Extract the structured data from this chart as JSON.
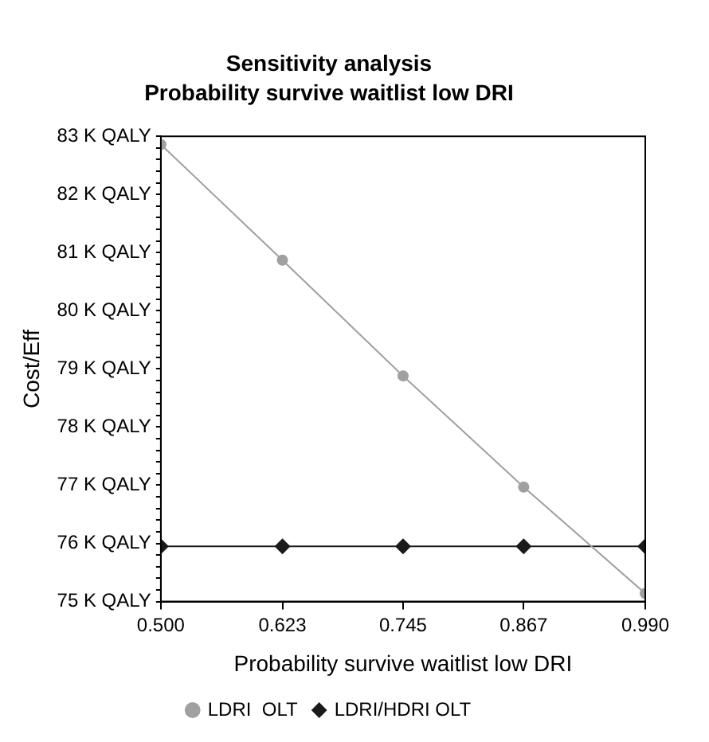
{
  "chart_data": {
    "type": "line",
    "title": "Sensitivity analysis",
    "subtitle": "Probability survive waitlist low DRI",
    "xlabel": "Probability survive waitlist low DRI",
    "ylabel": "Cost/Eff",
    "x": [
      0.5,
      0.623,
      0.745,
      0.867,
      0.99
    ],
    "series": [
      {
        "name": "LDRI  OLT",
        "color": "#a0a0a0",
        "marker": "circle",
        "values": [
          82.86,
          80.87,
          78.88,
          76.97,
          75.14
        ]
      },
      {
        "name": "LDRI/HDRI OLT",
        "color": "#1a1a1a",
        "marker": "diamond",
        "values": [
          75.95,
          75.95,
          75.95,
          75.95,
          75.95
        ]
      }
    ],
    "xlim": [
      0.5,
      0.99
    ],
    "xticks": [
      {
        "value": 0.5,
        "label": "0.500"
      },
      {
        "value": 0.623,
        "label": "0.623"
      },
      {
        "value": 0.745,
        "label": "0.745"
      },
      {
        "value": 0.867,
        "label": "0.867"
      },
      {
        "value": 0.99,
        "label": "0.990"
      }
    ],
    "ylim": [
      75,
      83
    ],
    "yticks": [
      {
        "value": 75,
        "label": "75 K QALY"
      },
      {
        "value": 75.2,
        "label": null
      },
      {
        "value": 75.4,
        "label": null
      },
      {
        "value": 75.6,
        "label": null
      },
      {
        "value": 75.8,
        "label": null
      },
      {
        "value": 76,
        "label": "76 K QALY"
      },
      {
        "value": 76.2,
        "label": null
      },
      {
        "value": 76.4,
        "label": null
      },
      {
        "value": 76.6,
        "label": null
      },
      {
        "value": 76.8,
        "label": null
      },
      {
        "value": 77,
        "label": "77 K QALY"
      },
      {
        "value": 77.2,
        "label": null
      },
      {
        "value": 77.4,
        "label": null
      },
      {
        "value": 77.6,
        "label": null
      },
      {
        "value": 77.8,
        "label": null
      },
      {
        "value": 78,
        "label": "78 K QALY"
      },
      {
        "value": 78.2,
        "label": null
      },
      {
        "value": 78.4,
        "label": null
      },
      {
        "value": 78.6,
        "label": null
      },
      {
        "value": 78.8,
        "label": null
      },
      {
        "value": 79,
        "label": "79 K QALY"
      },
      {
        "value": 79.2,
        "label": null
      },
      {
        "value": 79.4,
        "label": null
      },
      {
        "value": 79.6,
        "label": null
      },
      {
        "value": 79.8,
        "label": null
      },
      {
        "value": 80,
        "label": "80 K QALY"
      },
      {
        "value": 80.2,
        "label": null
      },
      {
        "value": 80.4,
        "label": null
      },
      {
        "value": 80.6,
        "label": null
      },
      {
        "value": 80.8,
        "label": null
      },
      {
        "value": 81,
        "label": "81 K QALY"
      },
      {
        "value": 81.2,
        "label": null
      },
      {
        "value": 81.4,
        "label": null
      },
      {
        "value": 81.6,
        "label": null
      },
      {
        "value": 81.8,
        "label": null
      },
      {
        "value": 82,
        "label": "82 K QALY"
      },
      {
        "value": 82.2,
        "label": null
      },
      {
        "value": 82.4,
        "label": null
      },
      {
        "value": 82.6,
        "label": null
      },
      {
        "value": 82.8,
        "label": null
      },
      {
        "value": 83,
        "label": "83 K QALY"
      }
    ],
    "grid": false,
    "legend": "bottom",
    "line_style": "solid"
  }
}
